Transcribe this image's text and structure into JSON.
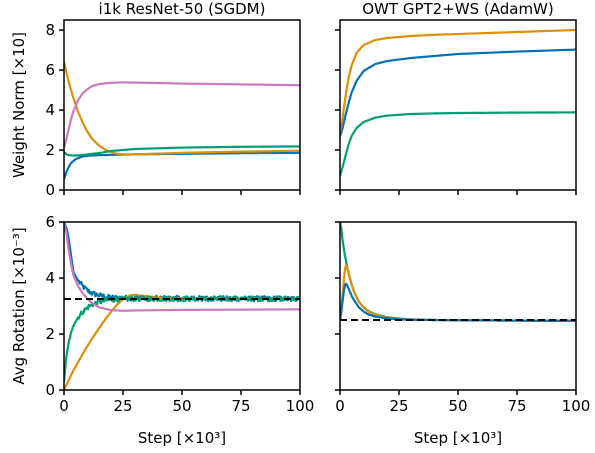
{
  "chart_data": [
    {
      "type": "line",
      "title": "i1k ResNet-50 (SGDM)",
      "xlabel": "",
      "ylabel": "Weight Norm [×10]",
      "xlim": [
        0,
        100
      ],
      "ylim": [
        0,
        8.5
      ],
      "xticks": [
        "0",
        "25",
        "50",
        "75",
        "100"
      ],
      "yticks": [
        "0",
        "2",
        "4",
        "6",
        "8"
      ],
      "series": [
        {
          "color": "#0173b2",
          "x": [
            0,
            1,
            2,
            3,
            5,
            8,
            12,
            20,
            30,
            50,
            75,
            100
          ],
          "y": [
            0.55,
            0.9,
            1.15,
            1.35,
            1.55,
            1.68,
            1.73,
            1.76,
            1.78,
            1.81,
            1.84,
            1.86
          ]
        },
        {
          "color": "#de8f05",
          "x": [
            0,
            2,
            4,
            6,
            8,
            10,
            12,
            15,
            18,
            22,
            26,
            30,
            40,
            50,
            75,
            100
          ],
          "y": [
            6.4,
            5.4,
            4.6,
            3.9,
            3.35,
            2.9,
            2.55,
            2.2,
            1.98,
            1.82,
            1.77,
            1.78,
            1.82,
            1.86,
            1.92,
            1.96
          ]
        },
        {
          "color": "#029e73",
          "x": [
            0,
            1,
            2,
            4,
            7,
            10,
            15,
            20,
            30,
            50,
            75,
            100
          ],
          "y": [
            1.9,
            1.78,
            1.74,
            1.72,
            1.74,
            1.78,
            1.85,
            1.95,
            2.05,
            2.12,
            2.16,
            2.18
          ]
        },
        {
          "color": "#cc78bc",
          "x": [
            0,
            1,
            2,
            3,
            4,
            6,
            8,
            10,
            12,
            15,
            20,
            25,
            30,
            40,
            50,
            75,
            100
          ],
          "y": [
            2.1,
            2.55,
            3.05,
            3.55,
            3.95,
            4.5,
            4.85,
            5.05,
            5.2,
            5.3,
            5.36,
            5.38,
            5.37,
            5.35,
            5.32,
            5.28,
            5.24
          ]
        }
      ]
    },
    {
      "type": "line",
      "title": "OWT GPT2+WS (AdamW)",
      "xlabel": "",
      "ylabel": "",
      "xlim": [
        0,
        100
      ],
      "ylim": [
        0,
        8.5
      ],
      "xticks": [
        "0",
        "25",
        "50",
        "75",
        "100"
      ],
      "yticks": [],
      "series": [
        {
          "color": "#0173b2",
          "x": [
            0,
            1,
            2,
            3,
            4,
            5,
            7,
            10,
            15,
            20,
            30,
            40,
            50,
            75,
            100
          ],
          "y": [
            2.7,
            3.05,
            3.55,
            4.05,
            4.5,
            4.9,
            5.45,
            5.95,
            6.3,
            6.45,
            6.6,
            6.7,
            6.8,
            6.92,
            7.02
          ]
        },
        {
          "color": "#de8f05",
          "x": [
            0,
            1,
            2,
            3,
            4,
            5,
            7,
            10,
            15,
            20,
            30,
            40,
            50,
            75,
            100
          ],
          "y": [
            2.9,
            3.5,
            4.4,
            5.2,
            5.8,
            6.25,
            6.85,
            7.25,
            7.5,
            7.6,
            7.7,
            7.76,
            7.8,
            7.9,
            8.0
          ]
        },
        {
          "color": "#029e73",
          "x": [
            0,
            1,
            2,
            3,
            4,
            5,
            7,
            10,
            15,
            20,
            30,
            40,
            50,
            75,
            100
          ],
          "y": [
            0.7,
            1.1,
            1.55,
            2.0,
            2.4,
            2.72,
            3.1,
            3.4,
            3.62,
            3.72,
            3.8,
            3.83,
            3.85,
            3.87,
            3.88
          ]
        }
      ]
    },
    {
      "type": "line",
      "title": "",
      "xlabel": "Step [×10³]",
      "ylabel": "Avg Rotation [×10⁻³]",
      "xlim": [
        0,
        100
      ],
      "ylim": [
        0,
        6
      ],
      "xticks": [
        "0",
        "25",
        "50",
        "75",
        "100"
      ],
      "yticks": [
        "0",
        "2",
        "4",
        "6"
      ],
      "reference_line": 3.25,
      "series": [
        {
          "color": "#0173b2",
          "noisy": true,
          "x": [
            0,
            1,
            2,
            3,
            4,
            6,
            8,
            10,
            12,
            15,
            20,
            30,
            50,
            75,
            100
          ],
          "y": [
            6.0,
            5.8,
            5.4,
            4.8,
            4.2,
            3.9,
            3.7,
            3.55,
            3.45,
            3.38,
            3.3,
            3.28,
            3.27,
            3.26,
            3.26
          ]
        },
        {
          "color": "#de8f05",
          "x": [
            0,
            2,
            4,
            6,
            8,
            10,
            12,
            14,
            16,
            18,
            20,
            22,
            24,
            26,
            28,
            30,
            35,
            40,
            50,
            75,
            100
          ],
          "y": [
            0.0,
            0.35,
            0.7,
            1.0,
            1.3,
            1.58,
            1.85,
            2.1,
            2.35,
            2.58,
            2.8,
            3.0,
            3.17,
            3.3,
            3.38,
            3.4,
            3.35,
            3.3,
            3.28,
            3.26,
            3.25
          ]
        },
        {
          "color": "#029e73",
          "noisy": true,
          "x": [
            0,
            1,
            2,
            3,
            4,
            6,
            8,
            10,
            12,
            15,
            18,
            20,
            25,
            30,
            50,
            75,
            100
          ],
          "y": [
            0.3,
            1.2,
            1.7,
            2.05,
            2.3,
            2.6,
            2.8,
            2.95,
            3.05,
            3.15,
            3.2,
            3.23,
            3.25,
            3.26,
            3.26,
            3.26,
            3.26
          ]
        },
        {
          "color": "#cc78bc",
          "x": [
            0,
            1,
            2,
            3,
            4,
            6,
            8,
            10,
            12,
            15,
            20,
            25,
            30,
            40,
            50,
            75,
            100
          ],
          "y": [
            6.0,
            5.6,
            5.0,
            4.5,
            4.1,
            3.7,
            3.45,
            3.25,
            3.1,
            2.95,
            2.85,
            2.83,
            2.84,
            2.85,
            2.86,
            2.87,
            2.88
          ]
        }
      ]
    },
    {
      "type": "line",
      "title": "",
      "xlabel": "Step [×10³]",
      "ylabel": "",
      "xlim": [
        0,
        100
      ],
      "ylim": [
        0,
        6
      ],
      "xticks": [
        "0",
        "25",
        "50",
        "75",
        "100"
      ],
      "yticks": [],
      "reference_line": 2.5,
      "series": [
        {
          "color": "#029e73",
          "x": [
            0,
            0.5,
            1,
            2,
            3,
            4,
            5,
            6,
            8,
            10,
            12,
            15,
            20,
            25,
            30,
            40,
            50,
            75,
            100
          ],
          "y": [
            6.0,
            5.8,
            5.4,
            4.85,
            4.4,
            4.05,
            3.75,
            3.5,
            3.15,
            2.95,
            2.82,
            2.7,
            2.6,
            2.55,
            2.52,
            2.5,
            2.49,
            2.48,
            2.47
          ]
        },
        {
          "color": "#de8f05",
          "x": [
            0,
            0.5,
            1,
            1.5,
            2,
            2.5,
            3,
            4,
            5,
            6,
            8,
            10,
            12,
            15,
            20,
            25,
            30,
            40,
            50,
            75,
            100
          ],
          "y": [
            2.5,
            2.85,
            3.3,
            3.8,
            4.25,
            4.45,
            4.4,
            4.05,
            3.75,
            3.5,
            3.15,
            2.95,
            2.8,
            2.68,
            2.58,
            2.53,
            2.51,
            2.5,
            2.49,
            2.48,
            2.47
          ]
        },
        {
          "color": "#0173b2",
          "x": [
            0,
            0.5,
            1,
            1.5,
            2,
            2.5,
            3,
            4,
            5,
            6,
            8,
            10,
            12,
            15,
            20,
            25,
            30,
            40,
            50,
            75,
            100
          ],
          "y": [
            2.5,
            2.75,
            3.1,
            3.45,
            3.7,
            3.8,
            3.75,
            3.55,
            3.35,
            3.2,
            2.95,
            2.8,
            2.7,
            2.62,
            2.56,
            2.52,
            2.51,
            2.5,
            2.49,
            2.48,
            2.47
          ]
        }
      ]
    }
  ]
}
